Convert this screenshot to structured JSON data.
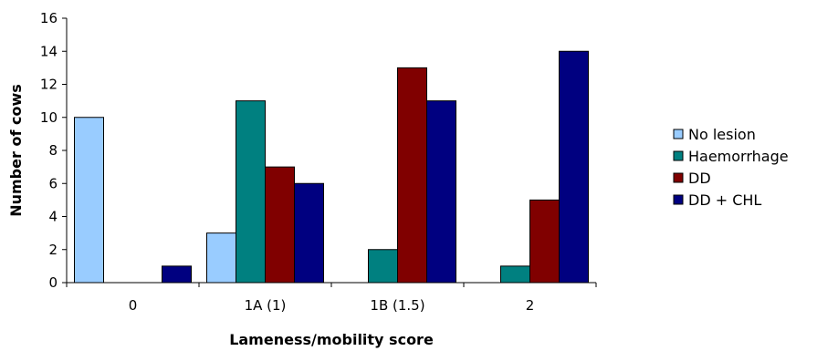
{
  "chart_data": {
    "type": "bar",
    "categories": [
      "0",
      "1A (1)",
      "1B (1.5)",
      "2"
    ],
    "series": [
      {
        "name": "No lesion",
        "values": [
          10,
          3,
          0,
          0
        ],
        "color": "#99CCFF"
      },
      {
        "name": "Haemorrhage",
        "values": [
          0,
          11,
          2,
          1
        ],
        "color": "#008080"
      },
      {
        "name": "DD",
        "values": [
          0,
          7,
          13,
          5
        ],
        "color": "#800000"
      },
      {
        "name": "DD + CHL",
        "values": [
          1,
          6,
          11,
          14
        ],
        "color": "#000080"
      }
    ],
    "title": "",
    "xlabel": "Lameness/mobility score",
    "ylabel": "Number of cows",
    "ylim": [
      0,
      16
    ],
    "yticks": [
      0,
      2,
      4,
      6,
      8,
      10,
      12,
      14,
      16
    ],
    "grid": false,
    "legend_position": "right"
  }
}
